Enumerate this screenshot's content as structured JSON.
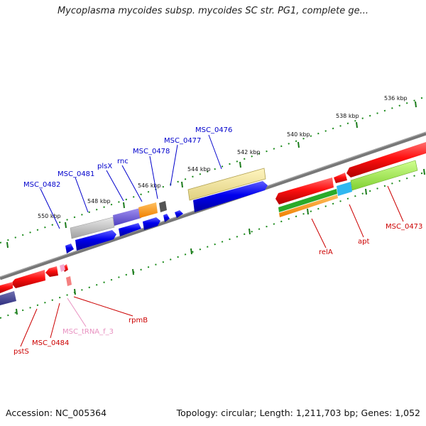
{
  "title": "Mycoplasma mycoides subsp. mycoides SC str. PG1, complete ge...",
  "footer": {
    "accession": "Accession: NC_005364",
    "summary": "Topology: circular; Length: 1,211,703 bp; Genes: 1,052"
  },
  "scale_labels": [
    "536 kbp",
    "538 kbp",
    "540 kbp",
    "542 kbp",
    "544 kbp",
    "546 kbp",
    "548 kbp",
    "550 kbp"
  ],
  "genes_top": [
    "MSC_0476",
    "MSC_0477",
    "MSC_0478",
    "rnc",
    "plsX",
    "MSC_0481",
    "MSC_0482"
  ],
  "genes_bottom": [
    "MSC_0473",
    "apt",
    "relA",
    "rpmB",
    "MSC_tRNA_f_3",
    "MSC_0484",
    "pstS"
  ],
  "colors": {
    "forward": "#0000e0",
    "reverse": "#e00000",
    "top_label": "#0000cc",
    "bottom_label": "#cc0000",
    "trna_label": "#e890c0",
    "backbone": "#808080"
  }
}
